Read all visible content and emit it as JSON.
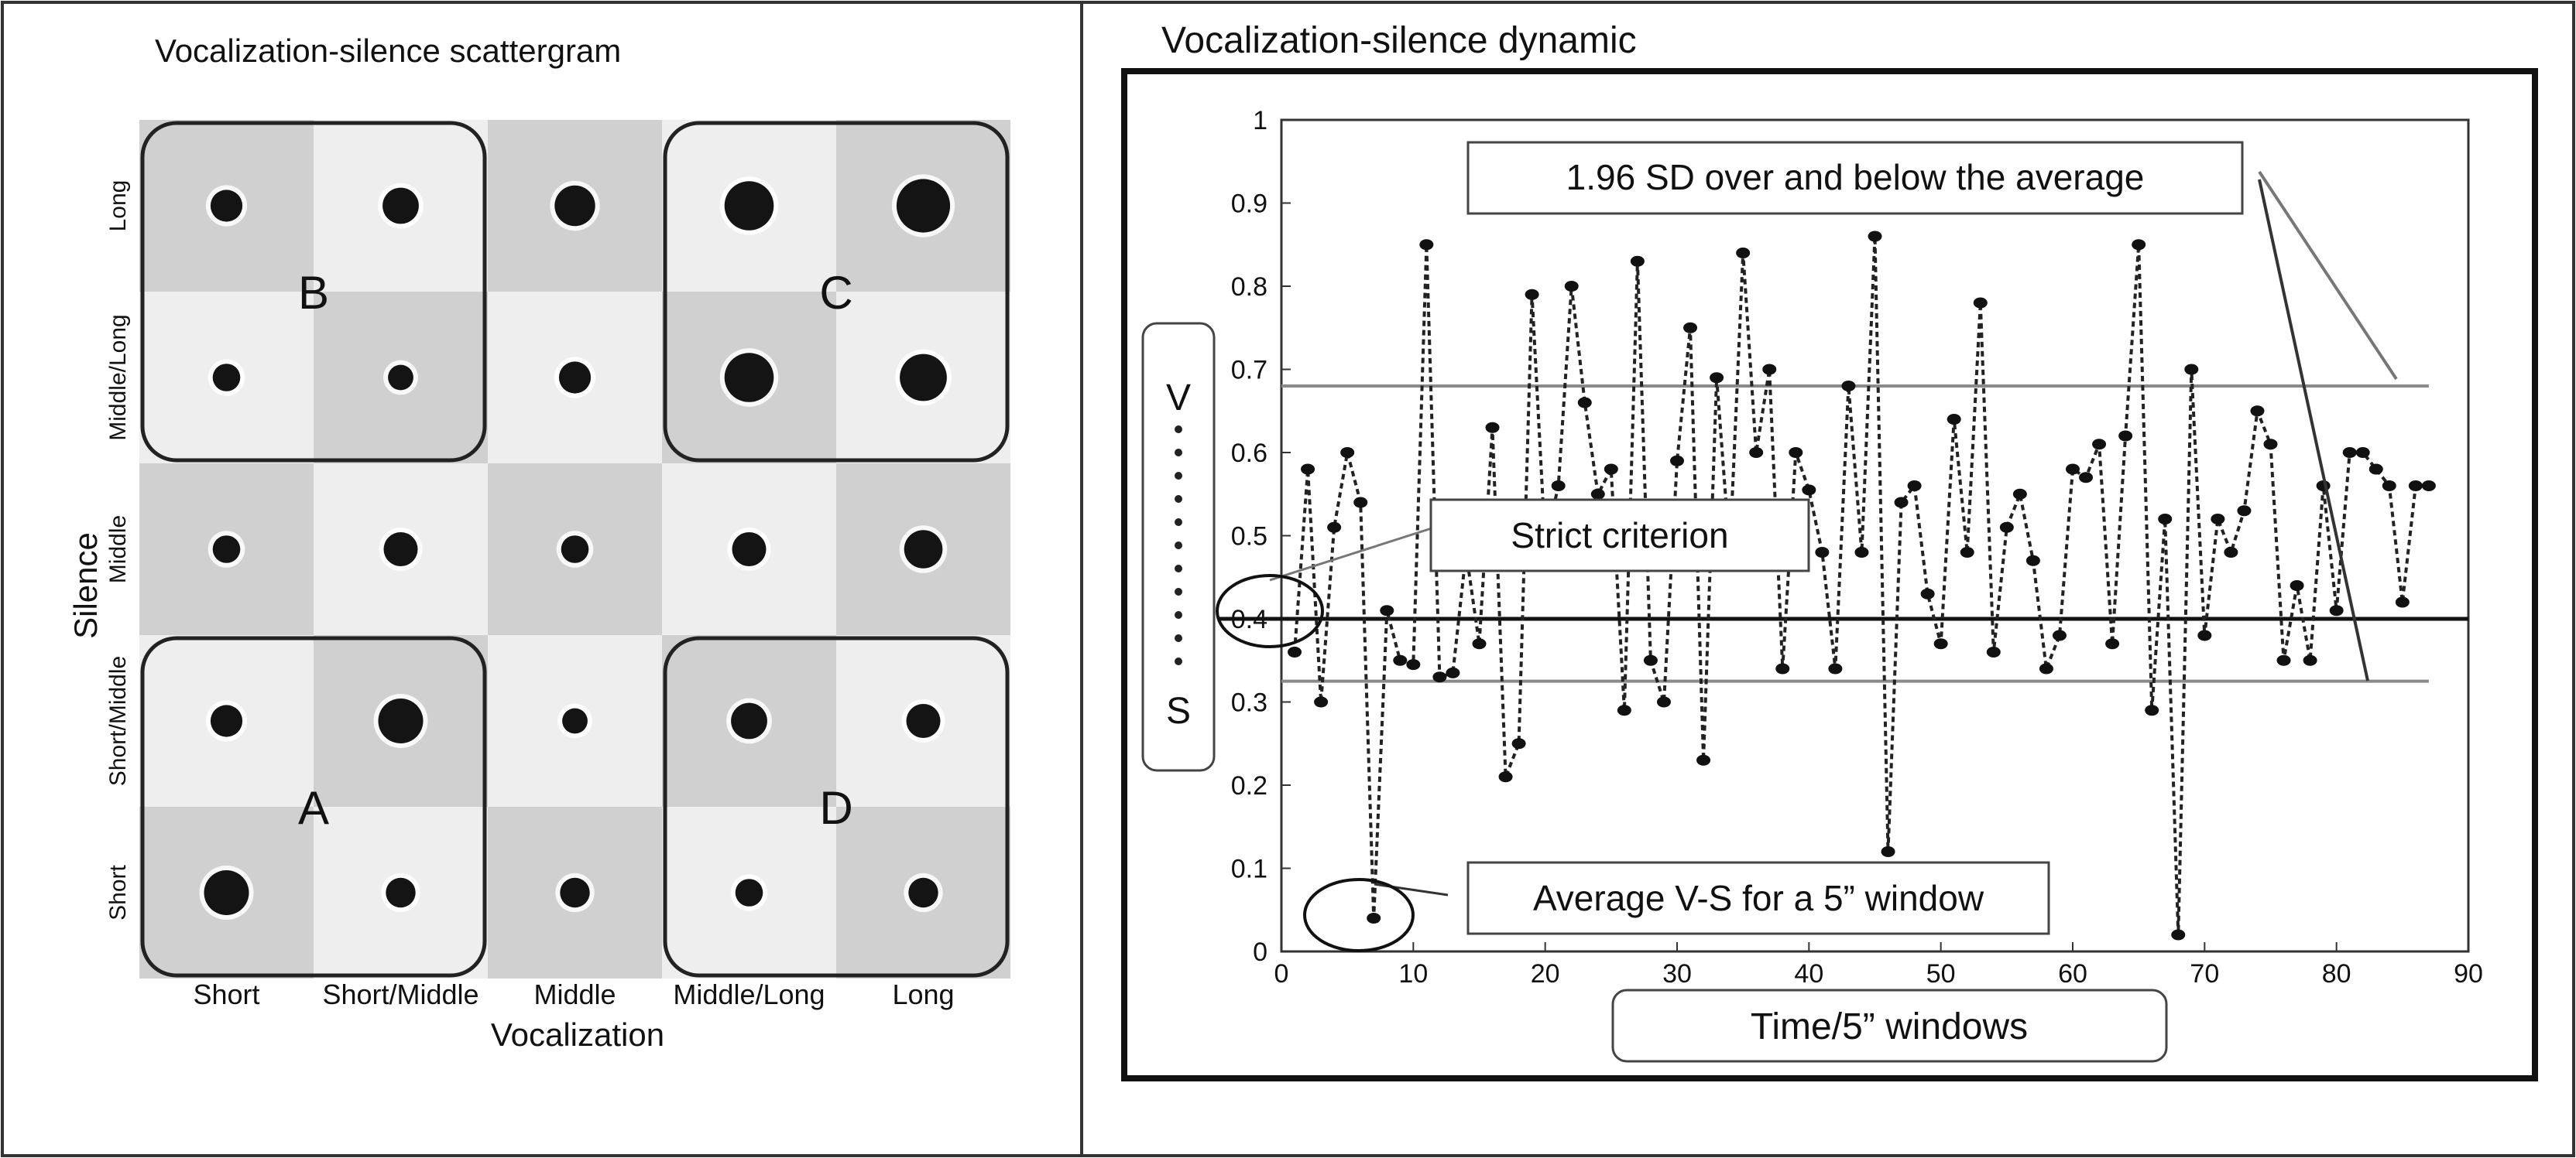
{
  "left_panel": {
    "title": "Vocalization-silence scattergram",
    "x_axis_label": "Vocalization",
    "y_axis_label": "Silence",
    "groups": [
      {
        "label": "A",
        "cols": [
          0,
          1
        ],
        "rows": [
          3,
          4
        ]
      },
      {
        "label": "B",
        "cols": [
          0,
          1
        ],
        "rows": [
          0,
          1
        ]
      },
      {
        "label": "C",
        "cols": [
          3,
          4
        ],
        "rows": [
          0,
          1
        ]
      },
      {
        "label": "D",
        "cols": [
          3,
          4
        ],
        "rows": [
          3,
          4
        ]
      }
    ]
  },
  "right_panel": {
    "title": "Vocalization-silence dynamic",
    "y_axis_label_top": "V",
    "y_axis_label_bottom": "S",
    "x_axis_label": "Time/5” windows",
    "annotations": {
      "sd_label": "1.96 SD over and below the average",
      "strict_label": "Strict criterion",
      "avg_label": "Average V-S for a 5” window"
    }
  },
  "chart_data": [
    {
      "type": "scatter",
      "title": "Vocalization-silence scattergram",
      "xlabel": "Vocalization",
      "ylabel": "Silence",
      "x_categories": [
        "Short",
        "Short/Middle",
        "Middle",
        "Middle/Long",
        "Long"
      ],
      "y_categories": [
        "Long",
        "Middle/Long",
        "Middle",
        "Short/Middle",
        "Short"
      ],
      "cell_shading": [
        [
          "dark",
          "light",
          "dark",
          "light",
          "dark"
        ],
        [
          "light",
          "dark",
          "light",
          "dark",
          "light"
        ],
        [
          "dark",
          "light",
          "dark",
          "light",
          "dark"
        ],
        [
          "light",
          "dark",
          "light",
          "dark",
          "light"
        ],
        [
          "dark",
          "light",
          "dark",
          "light",
          "dark"
        ]
      ],
      "relative_frequency": [
        [
          0.45,
          0.55,
          0.65,
          0.85,
          0.95
        ],
        [
          0.35,
          0.3,
          0.45,
          0.85,
          0.8
        ],
        [
          0.35,
          0.5,
          0.35,
          0.5,
          0.6
        ],
        [
          0.45,
          0.75,
          0.3,
          0.55,
          0.5
        ],
        [
          0.75,
          0.4,
          0.4,
          0.35,
          0.4
        ]
      ],
      "colors": {
        "dark_cell": "#d0d0d0",
        "light_cell": "#eeeeee",
        "dot": "#141414"
      }
    },
    {
      "type": "line",
      "title": "Vocalization-silence dynamic",
      "xlabel": "Time/5” windows",
      "ylabel": "V-S",
      "xlim": [
        0,
        90
      ],
      "ylim": [
        0,
        1
      ],
      "x_ticks": [
        0,
        10,
        20,
        30,
        40,
        50,
        60,
        70,
        80,
        90
      ],
      "y_ticks": [
        0,
        0.1,
        0.2,
        0.3,
        0.4,
        0.5,
        0.6,
        0.7,
        0.8,
        0.9,
        1
      ],
      "average": 0.4,
      "upper_limit": 0.68,
      "lower_limit": 0.325,
      "x": [
        1,
        2,
        3,
        4,
        5,
        6,
        7,
        8,
        9,
        10,
        11,
        12,
        13,
        14,
        15,
        16,
        17,
        18,
        19,
        20,
        21,
        22,
        23,
        24,
        25,
        26,
        27,
        28,
        29,
        30,
        31,
        32,
        33,
        34,
        35,
        36,
        37,
        38,
        39,
        40,
        41,
        42,
        43,
        44,
        45,
        46,
        47,
        48,
        49,
        50,
        51,
        52,
        53,
        54,
        55,
        56,
        57,
        58,
        59,
        60,
        61,
        62,
        63,
        64,
        65,
        66,
        67,
        68,
        69,
        70,
        71,
        72,
        73,
        74,
        75,
        76,
        77,
        78,
        79,
        80,
        81,
        82,
        83,
        84,
        85,
        86,
        87
      ],
      "y": [
        0.36,
        0.58,
        0.3,
        0.51,
        0.6,
        0.54,
        0.04,
        0.41,
        0.35,
        0.345,
        0.85,
        0.33,
        0.335,
        0.48,
        0.37,
        0.63,
        0.21,
        0.25,
        0.79,
        0.49,
        0.56,
        0.8,
        0.66,
        0.55,
        0.58,
        0.29,
        0.83,
        0.35,
        0.3,
        0.59,
        0.75,
        0.23,
        0.69,
        0.48,
        0.84,
        0.6,
        0.7,
        0.34,
        0.6,
        0.555,
        0.48,
        0.34,
        0.68,
        0.48,
        0.86,
        0.12,
        0.54,
        0.56,
        0.43,
        0.37,
        0.64,
        0.48,
        0.78,
        0.36,
        0.51,
        0.55,
        0.47,
        0.34,
        0.38,
        0.58,
        0.57,
        0.61,
        0.37,
        0.62,
        0.85,
        0.29,
        0.52,
        0.02,
        0.7,
        0.38,
        0.52,
        0.48,
        0.53,
        0.65,
        0.61,
        0.35,
        0.44,
        0.35,
        0.56,
        0.41,
        0.6,
        0.6,
        0.58,
        0.56,
        0.42,
        0.56,
        0.56
      ],
      "colors": {
        "series": "#222222",
        "average": "#111111",
        "limits": "#8a8a8a"
      }
    }
  ]
}
